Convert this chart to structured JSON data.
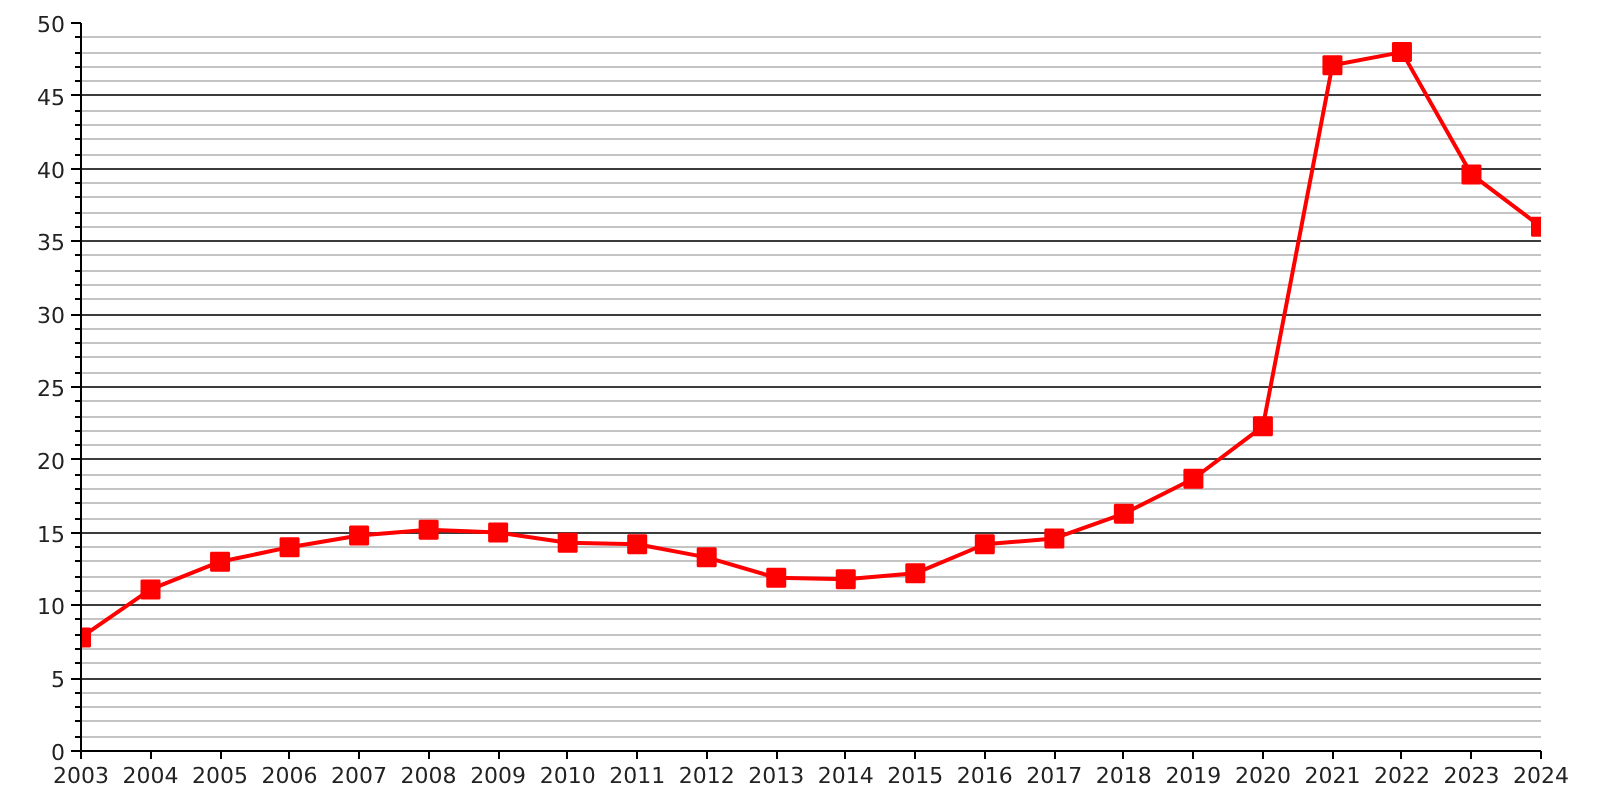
{
  "chart_data": {
    "type": "line",
    "x": [
      2003,
      2004,
      2005,
      2006,
      2007,
      2008,
      2009,
      2010,
      2011,
      2012,
      2013,
      2014,
      2015,
      2016,
      2017,
      2018,
      2019,
      2020,
      2021,
      2022,
      2023,
      2024
    ],
    "xlim": [
      2003,
      2024
    ],
    "xticks": [
      2003,
      2004,
      2005,
      2006,
      2007,
      2008,
      2009,
      2010,
      2011,
      2012,
      2013,
      2014,
      2015,
      2016,
      2017,
      2018,
      2019,
      2020,
      2021,
      2022,
      2023,
      2024
    ],
    "ylim": [
      0,
      50
    ],
    "yticks": [
      0,
      {
        "value": 1,
        "label": null
      },
      {
        "value": 2,
        "label": null
      },
      {
        "value": 3,
        "label": null
      },
      {
        "value": 4,
        "label": null
      },
      5,
      {
        "value": 6,
        "label": null
      },
      {
        "value": 7,
        "label": null
      },
      {
        "value": 8,
        "label": null
      },
      {
        "value": 9,
        "label": null
      },
      10,
      {
        "value": 11,
        "label": null
      },
      {
        "value": 12,
        "label": null
      },
      {
        "value": 13,
        "label": null
      },
      {
        "value": 14,
        "label": null
      },
      15,
      {
        "value": 16,
        "label": null
      },
      {
        "value": 17,
        "label": null
      },
      {
        "value": 18,
        "label": null
      },
      {
        "value": 19,
        "label": null
      },
      20,
      {
        "value": 21,
        "label": null
      },
      {
        "value": 22,
        "label": null
      },
      {
        "value": 23,
        "label": null
      },
      {
        "value": 24,
        "label": null
      },
      25,
      {
        "value": 26,
        "label": null
      },
      {
        "value": 27,
        "label": null
      },
      {
        "value": 28,
        "label": null
      },
      {
        "value": 29,
        "label": null
      },
      30,
      {
        "value": 31,
        "label": null
      },
      {
        "value": 32,
        "label": null
      },
      {
        "value": 33,
        "label": null
      },
      {
        "value": 34,
        "label": null
      },
      35,
      {
        "value": 36,
        "label": null
      },
      {
        "value": 37,
        "label": null
      },
      {
        "value": 38,
        "label": null
      },
      {
        "value": 39,
        "label": null
      },
      40,
      {
        "value": 41,
        "label": null
      },
      {
        "value": 42,
        "label": null
      },
      {
        "value": 43,
        "label": null
      },
      {
        "value": 44,
        "label": null
      },
      45,
      {
        "value": 46,
        "label": null
      },
      {
        "value": 47,
        "label": null
      },
      {
        "value": 48,
        "label": null
      },
      {
        "value": 49,
        "label": null
      },
      50
    ],
    "grid": "y",
    "marker": "square",
    "line_style": "solid",
    "series": [
      {
        "color": "#ff0000",
        "values": [
          7.8,
          11.1,
          13.0,
          14.0,
          14.8,
          15.2,
          15.0,
          14.3,
          14.2,
          13.3,
          11.9,
          11.8,
          12.2,
          14.2,
          14.6,
          16.3,
          18.7,
          22.3,
          47.1,
          48.0,
          39.6,
          36.0
        ]
      }
    ]
  }
}
